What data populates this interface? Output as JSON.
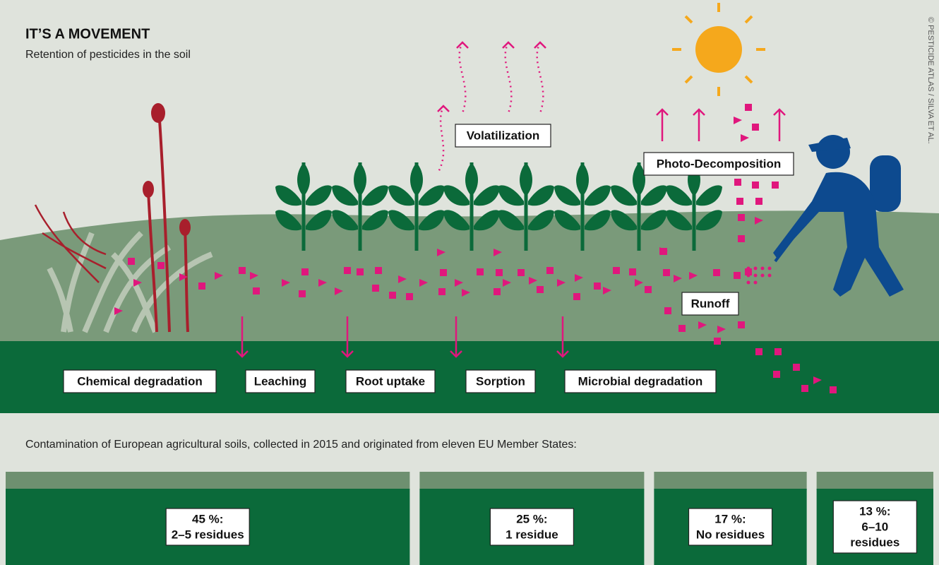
{
  "header": {
    "title": "IT’S A MOVEMENT",
    "subtitle": "Retention of pesticides in the soil",
    "credit": "© PESTICIDE ATLAS / SILVA ET AL."
  },
  "labels": {
    "volatilization": "Volatilization",
    "photo": "Photo-Decomposition",
    "runoff": "Runoff",
    "chemical": "Chemical degradation",
    "leaching": "Leaching",
    "root": "Root uptake",
    "sorption": "Sorption",
    "microbial": "Microbial degradation"
  },
  "residues": {
    "caption": "Contamination of European agricultural soils, collected in 2015 and originated from eleven EU Member States:",
    "segments": [
      {
        "percent": 45,
        "percent_label": "45 %:",
        "label": [
          "2–5 residues"
        ]
      },
      {
        "percent": 25,
        "percent_label": "25 %:",
        "label": [
          "1 residue"
        ]
      },
      {
        "percent": 17,
        "percent_label": "17 %:",
        "label": [
          "No residues"
        ]
      },
      {
        "percent": 13,
        "percent_label": "13 %:",
        "label": [
          "6–10",
          "residues"
        ]
      }
    ]
  }
}
